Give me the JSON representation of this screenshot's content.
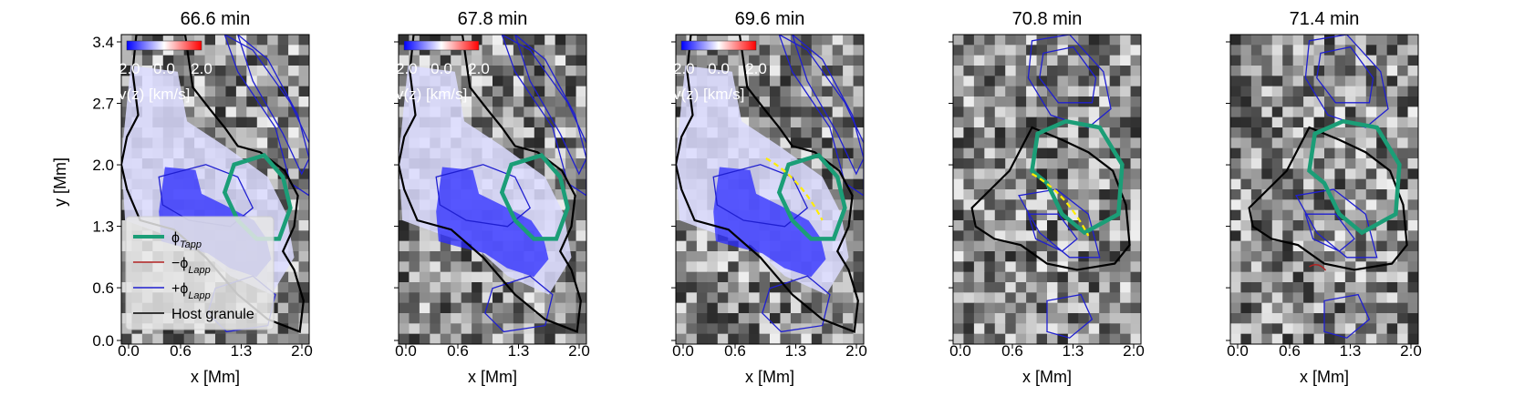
{
  "figure": {
    "xlabel": "x [Mm]",
    "ylabel": "y [Mm]",
    "xticks": [
      "0.0",
      "0.6",
      "1.3",
      "2.0"
    ],
    "yticks": [
      "0.0",
      "0.6",
      "1.3",
      "2.0",
      "2.7",
      "3.4"
    ],
    "colorbar": {
      "ticks": [
        "-2.0",
        "0.0",
        "2.0"
      ],
      "label": "v(z) [km/s]"
    },
    "legend": [
      {
        "label": "ϕ",
        "sub": "Tapp",
        "color": "#1b9e77"
      },
      {
        "label": "−ϕ",
        "sub": "Lapp",
        "color": "#b22222"
      },
      {
        "label": "+ϕ",
        "sub": "Lapp",
        "color": "#1f1fd0"
      },
      {
        "label": "Host granule",
        "sub": "",
        "color": "#000000"
      }
    ]
  },
  "chart_data": [
    {
      "type": "heatmap",
      "title": "66.6 min",
      "xlim": [
        0.0,
        2.0
      ],
      "ylim": [
        0.0,
        3.4
      ],
      "xlabel": "x [Mm]",
      "ylabel": "y [Mm]",
      "has_colorbar": true,
      "has_legend": true,
      "has_yellow_arc": false
    },
    {
      "type": "heatmap",
      "title": "67.8 min",
      "xlim": [
        0.0,
        2.0
      ],
      "ylim": [
        0.0,
        3.4
      ],
      "xlabel": "x [Mm]",
      "has_colorbar": true,
      "has_legend": false,
      "has_yellow_arc": false
    },
    {
      "type": "heatmap",
      "title": "69.6 min",
      "xlim": [
        0.0,
        2.0
      ],
      "ylim": [
        0.0,
        3.4
      ],
      "xlabel": "x [Mm]",
      "has_colorbar": true,
      "has_legend": false,
      "has_yellow_arc": true
    },
    {
      "type": "heatmap",
      "title": "70.8 min",
      "xlim": [
        0.0,
        2.0
      ],
      "ylim": [
        0.0,
        3.4
      ],
      "xlabel": "x [Mm]",
      "has_colorbar": false,
      "has_legend": false,
      "has_yellow_arc": true
    },
    {
      "type": "heatmap",
      "title": "71.4 min",
      "xlim": [
        0.0,
        2.0
      ],
      "ylim": [
        0.0,
        3.4
      ],
      "xlabel": "x [Mm]",
      "has_colorbar": false,
      "has_legend": false,
      "has_yellow_arc": false
    }
  ]
}
